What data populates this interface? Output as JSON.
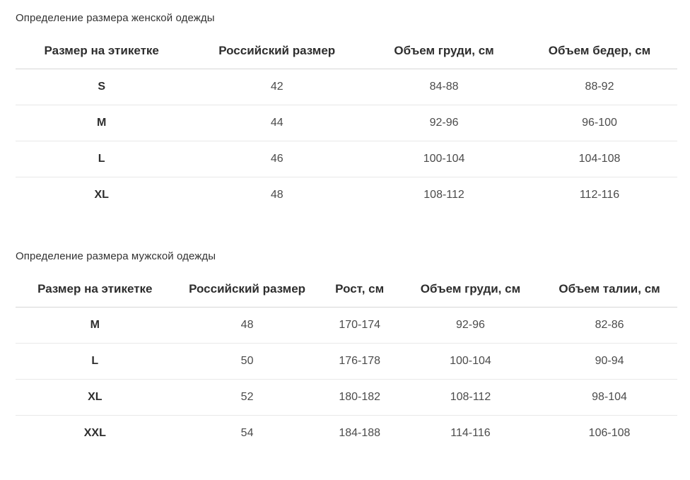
{
  "colors": {
    "background": "#ffffff",
    "title_text": "#333333",
    "header_text": "#2e2e2e",
    "cell_text": "#4b4b4b",
    "header_border": "#d6d6d6",
    "row_border": "#e8e8e8"
  },
  "tables": {
    "women": {
      "title": "Определение размера женской одежды",
      "headers": [
        "Размер на этикетке",
        "Российский размер",
        "Объем груди, см",
        "Объем бедер, см"
      ],
      "rows": [
        [
          "S",
          "42",
          "84-88",
          "88-92"
        ],
        [
          "M",
          "44",
          "92-96",
          "96-100"
        ],
        [
          "L",
          "46",
          "100-104",
          "104-108"
        ],
        [
          "XL",
          "48",
          "108-112",
          "112-116"
        ]
      ]
    },
    "men": {
      "title": "Определение размера мужской одежды",
      "headers": [
        "Размер на этикетке",
        "Российский размер",
        "Рост, см",
        "Объем груди, см",
        "Объем талии, см"
      ],
      "rows": [
        [
          "M",
          "48",
          "170-174",
          "92-96",
          "82-86"
        ],
        [
          "L",
          "50",
          "176-178",
          "100-104",
          "90-94"
        ],
        [
          "XL",
          "52",
          "180-182",
          "108-112",
          "98-104"
        ],
        [
          "XXL",
          "54",
          "184-188",
          "114-116",
          "106-108"
        ]
      ]
    }
  }
}
